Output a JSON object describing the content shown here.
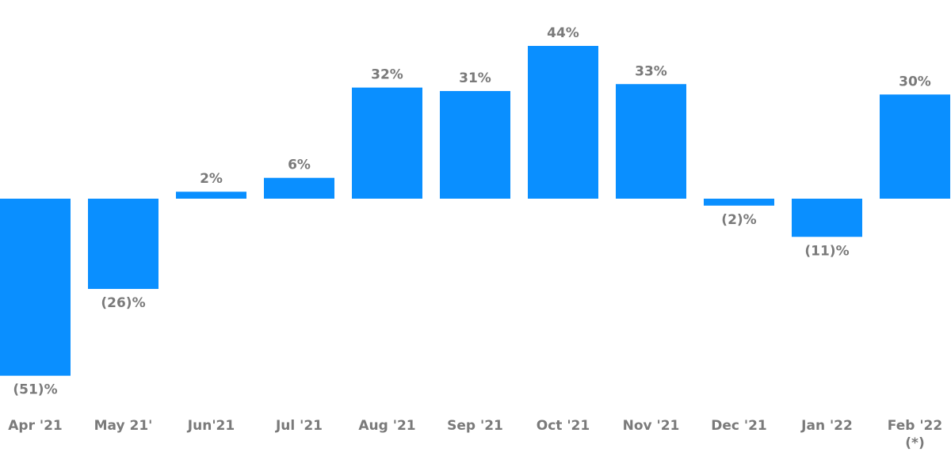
{
  "chart_data": {
    "type": "bar",
    "categories": [
      "Apr '21",
      "May 21'",
      "Jun'21",
      "Jul '21",
      "Aug '21",
      "Sep '21",
      "Oct '21",
      "Nov '21",
      "Dec '21",
      "Jan '22",
      "Feb '22\n(*)"
    ],
    "values": [
      -51,
      -26,
      2,
      6,
      32,
      31,
      44,
      33,
      -2,
      -11,
      30
    ],
    "value_labels": [
      "(51)%",
      "(26)%",
      "2%",
      "6%",
      "32%",
      "31%",
      "44%",
      "33%",
      "(2)%",
      "(11)%",
      "30%"
    ],
    "color": "#0a8fff"
  }
}
